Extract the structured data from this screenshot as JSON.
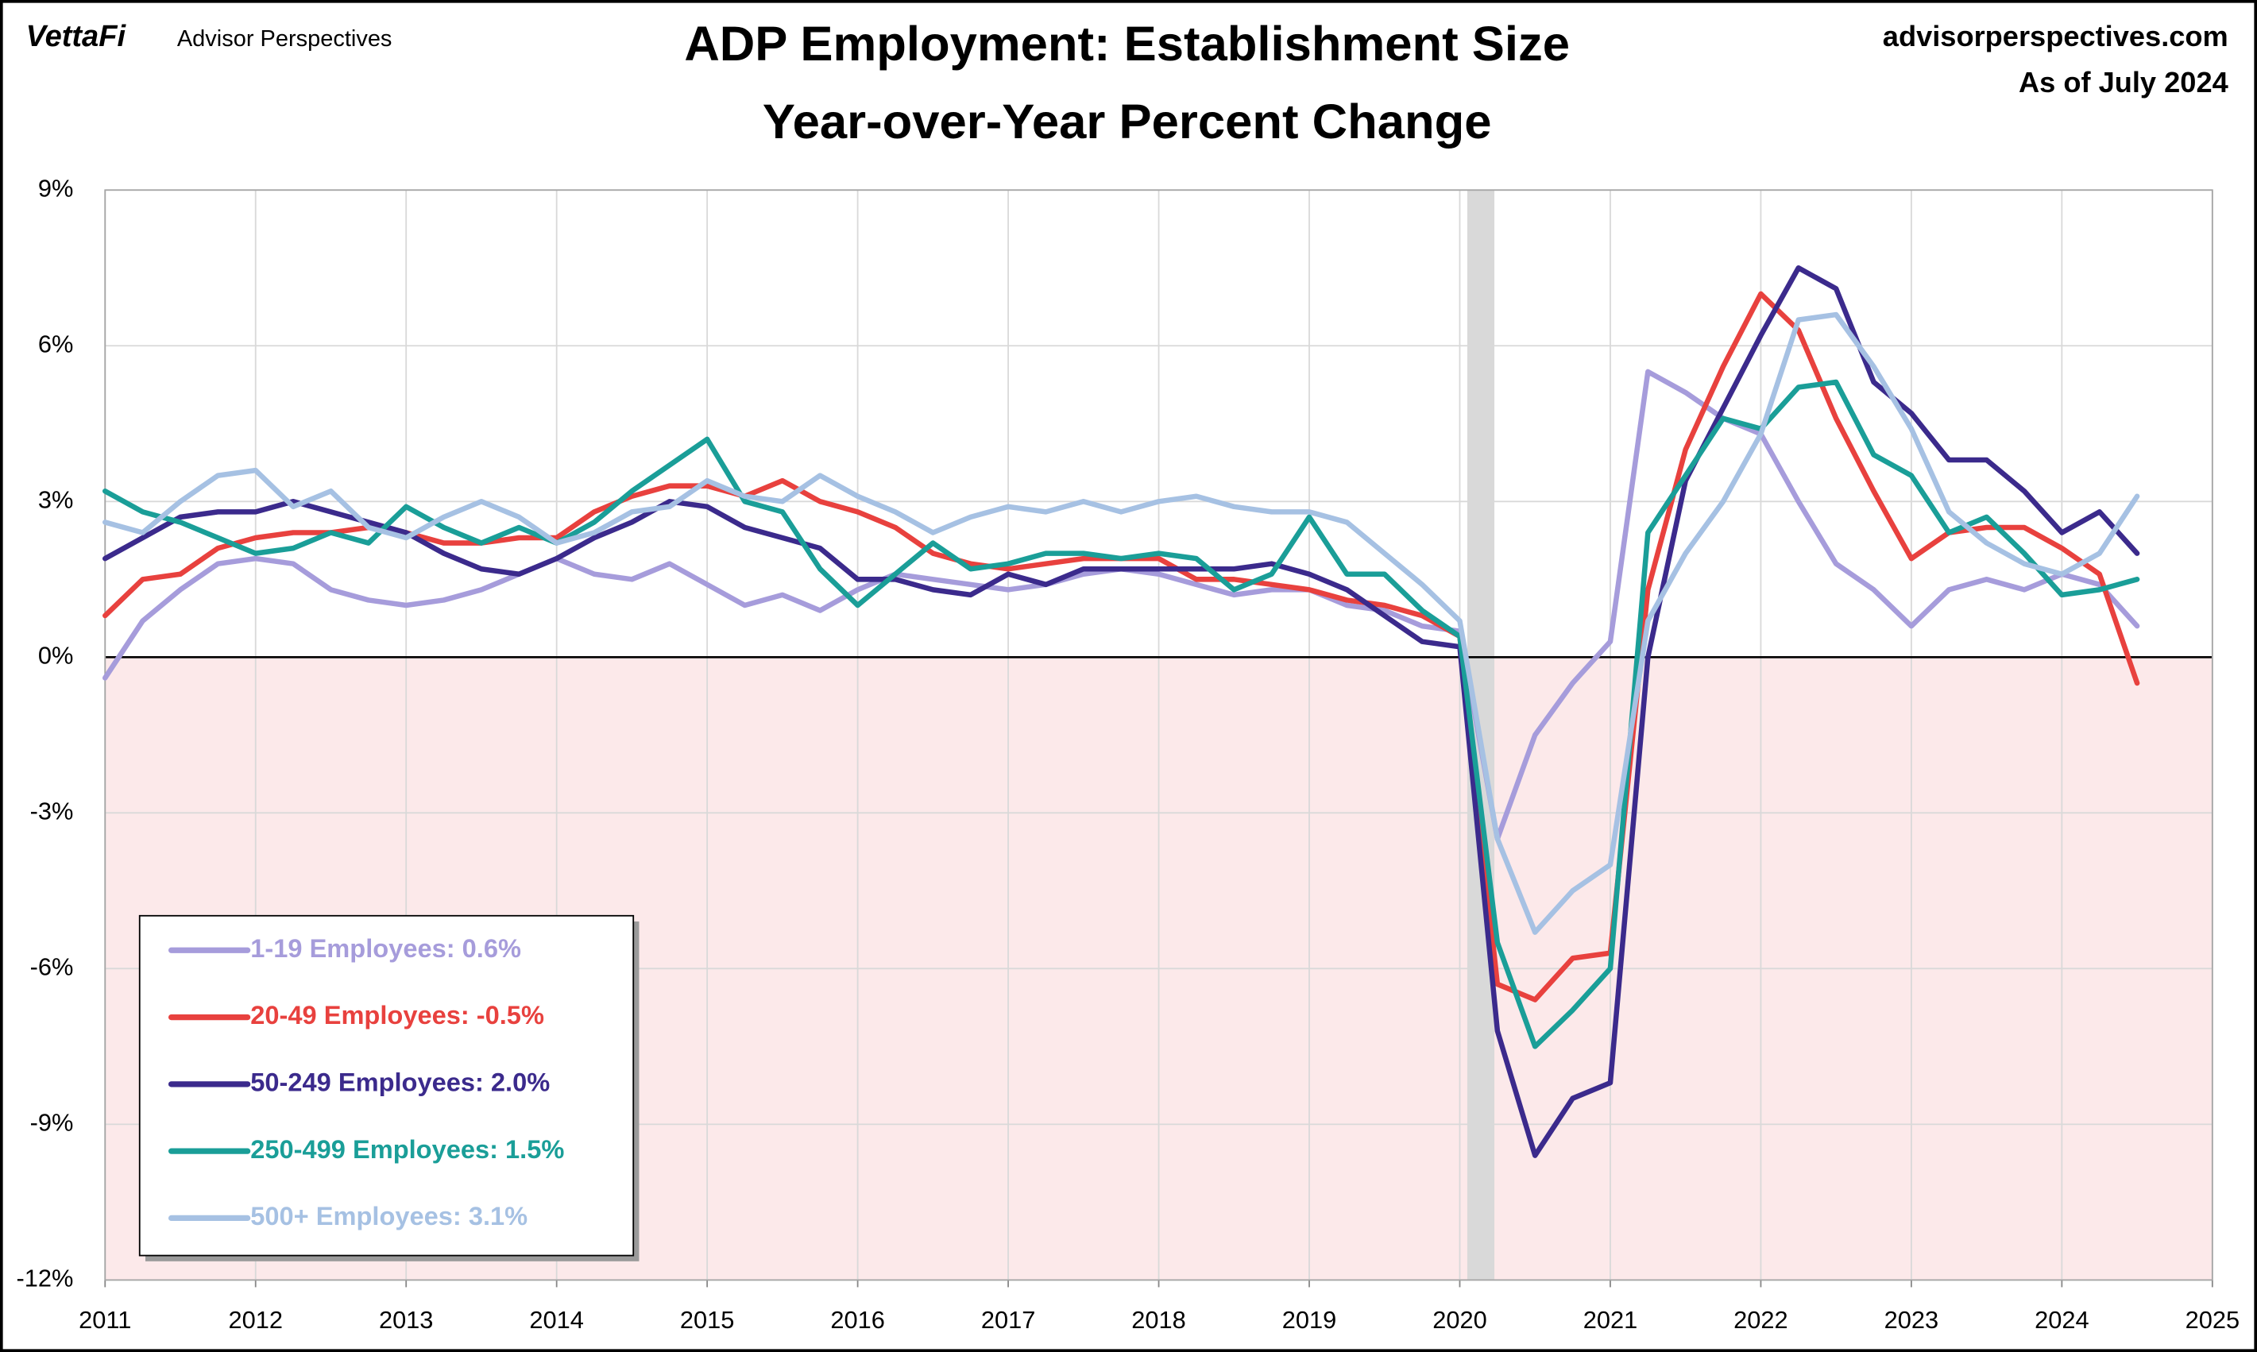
{
  "header": {
    "brand": "VettaFi",
    "brand_sub": "Advisor Perspectives",
    "site": "advisorperspectives.com",
    "as_of": "As of July 2024"
  },
  "chart_data": {
    "type": "line",
    "title": "ADP Employment: Establishment Size",
    "subtitle": "Year-over-Year Percent Change",
    "x": [
      2011.0,
      2011.25,
      2011.5,
      2011.75,
      2012.0,
      2012.25,
      2012.5,
      2012.75,
      2013.0,
      2013.25,
      2013.5,
      2013.75,
      2014.0,
      2014.25,
      2014.5,
      2014.75,
      2015.0,
      2015.25,
      2015.5,
      2015.75,
      2016.0,
      2016.25,
      2016.5,
      2016.75,
      2017.0,
      2017.25,
      2017.5,
      2017.75,
      2018.0,
      2018.25,
      2018.5,
      2018.75,
      2019.0,
      2019.25,
      2019.5,
      2019.75,
      2020.0,
      2020.25,
      2020.5,
      2020.75,
      2021.0,
      2021.25,
      2021.5,
      2021.75,
      2022.0,
      2022.25,
      2022.5,
      2022.75,
      2023.0,
      2023.25,
      2023.5,
      2023.75,
      2024.0,
      2024.25,
      2024.5
    ],
    "series": [
      {
        "name": "1-19 Employees: 0.6%",
        "color": "#a69cdb",
        "values": [
          -0.4,
          0.7,
          1.3,
          1.8,
          1.9,
          1.8,
          1.3,
          1.1,
          1.0,
          1.1,
          1.3,
          1.6,
          1.9,
          1.6,
          1.5,
          1.8,
          1.4,
          1.0,
          1.2,
          0.9,
          1.3,
          1.6,
          1.5,
          1.4,
          1.3,
          1.4,
          1.6,
          1.7,
          1.6,
          1.4,
          1.2,
          1.3,
          1.3,
          1.0,
          0.9,
          0.6,
          0.5,
          -3.5,
          -1.5,
          -0.5,
          0.3,
          5.5,
          5.1,
          4.6,
          4.3,
          3.0,
          1.8,
          1.3,
          0.6,
          1.3,
          1.5,
          1.3,
          1.6,
          1.4,
          0.6
        ]
      },
      {
        "name": "20-49 Employees: -0.5%",
        "color": "#e8413e",
        "values": [
          0.8,
          1.5,
          1.6,
          2.1,
          2.3,
          2.4,
          2.4,
          2.5,
          2.4,
          2.2,
          2.2,
          2.3,
          2.3,
          2.8,
          3.1,
          3.3,
          3.3,
          3.1,
          3.4,
          3.0,
          2.8,
          2.5,
          2.0,
          1.8,
          1.7,
          1.8,
          1.9,
          1.9,
          1.9,
          1.5,
          1.5,
          1.4,
          1.3,
          1.1,
          1.0,
          0.8,
          0.4,
          -6.3,
          -6.6,
          -5.8,
          -5.7,
          1.3,
          4.0,
          5.6,
          7.0,
          6.3,
          4.6,
          3.2,
          1.9,
          2.4,
          2.5,
          2.5,
          2.1,
          1.6,
          -0.5
        ]
      },
      {
        "name": "50-249 Employees: 2.0%",
        "color": "#3b2a8c",
        "values": [
          1.9,
          2.3,
          2.7,
          2.8,
          2.8,
          3.0,
          2.8,
          2.6,
          2.4,
          2.0,
          1.7,
          1.6,
          1.9,
          2.3,
          2.6,
          3.0,
          2.9,
          2.5,
          2.3,
          2.1,
          1.5,
          1.5,
          1.3,
          1.2,
          1.6,
          1.4,
          1.7,
          1.7,
          1.7,
          1.7,
          1.7,
          1.8,
          1.6,
          1.3,
          0.8,
          0.3,
          0.2,
          -7.2,
          -9.6,
          -8.5,
          -8.2,
          0.0,
          3.4,
          4.8,
          6.2,
          7.5,
          7.1,
          5.3,
          4.7,
          3.8,
          3.8,
          3.2,
          2.4,
          2.8,
          2.0
        ]
      },
      {
        "name": "250-499 Employees: 1.5%",
        "color": "#1a9e98",
        "values": [
          3.2,
          2.8,
          2.6,
          2.3,
          2.0,
          2.1,
          2.4,
          2.2,
          2.9,
          2.5,
          2.2,
          2.5,
          2.2,
          2.6,
          3.2,
          3.7,
          4.2,
          3.0,
          2.8,
          1.7,
          1.0,
          1.6,
          2.2,
          1.7,
          1.8,
          2.0,
          2.0,
          1.9,
          2.0,
          1.9,
          1.3,
          1.6,
          2.7,
          1.6,
          1.6,
          0.9,
          0.4,
          -5.5,
          -7.5,
          -6.8,
          -6.0,
          2.4,
          3.5,
          4.6,
          4.4,
          5.2,
          5.3,
          3.9,
          3.5,
          2.4,
          2.7,
          2.0,
          1.2,
          1.3,
          1.5
        ]
      },
      {
        "name": "500+ Employees: 3.1%",
        "color": "#a6c1e3",
        "values": [
          2.6,
          2.4,
          3.0,
          3.5,
          3.6,
          2.9,
          3.2,
          2.5,
          2.3,
          2.7,
          3.0,
          2.7,
          2.2,
          2.4,
          2.8,
          2.9,
          3.4,
          3.1,
          3.0,
          3.5,
          3.1,
          2.8,
          2.4,
          2.7,
          2.9,
          2.8,
          3.0,
          2.8,
          3.0,
          3.1,
          2.9,
          2.8,
          2.8,
          2.6,
          2.0,
          1.4,
          0.7,
          -3.5,
          -5.3,
          -4.5,
          -4.0,
          0.7,
          2.0,
          3.0,
          4.3,
          6.5,
          6.6,
          5.6,
          4.4,
          2.8,
          2.2,
          1.8,
          1.6,
          2.0,
          3.1
        ]
      }
    ],
    "xlim": [
      2011,
      2025
    ],
    "xticks": [
      2011,
      2012,
      2013,
      2014,
      2015,
      2016,
      2017,
      2018,
      2019,
      2020,
      2021,
      2022,
      2023,
      2024,
      2025
    ],
    "ylim": [
      -12,
      9
    ],
    "yticks": [
      {
        "value": -12,
        "label": "-12%"
      },
      {
        "value": -9,
        "label": "-9%"
      },
      {
        "value": -6,
        "label": "-6%"
      },
      {
        "value": -3,
        "label": "-3%"
      },
      {
        "value": 0,
        "label": "0%"
      },
      {
        "value": 3,
        "label": "3%"
      },
      {
        "value": 6,
        "label": "6%"
      },
      {
        "value": 9,
        "label": "9%"
      }
    ],
    "grid": true,
    "shaded_x": [
      2020.05,
      2020.23
    ],
    "shaded_color": "#d9d9d9",
    "negative_fill": "#fce9ea",
    "legend": "lower left"
  }
}
